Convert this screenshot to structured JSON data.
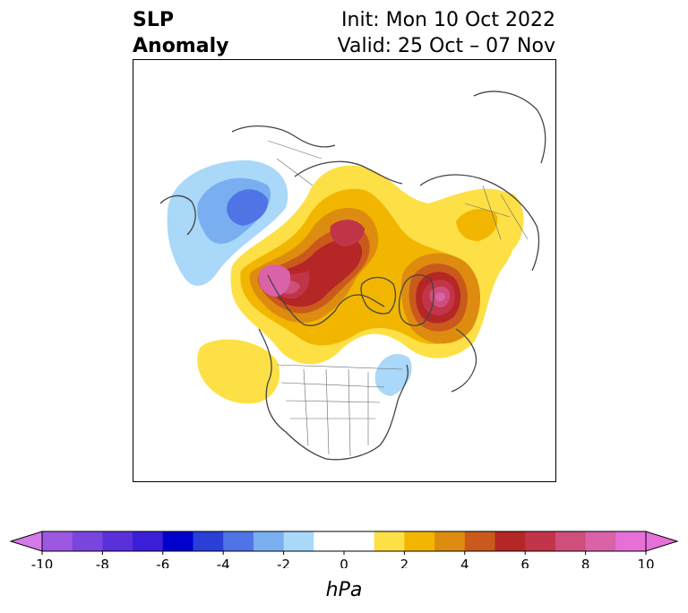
{
  "title": {
    "left_line1": "SLP",
    "left_line2": "Anomaly",
    "right_line1": "Init: Mon 10 Oct 2022",
    "right_line2": "Valid: 25 Oct – 07 Nov"
  },
  "colorbar": {
    "label": "hPa",
    "ticks": [
      "-10",
      "-8",
      "-6",
      "-4",
      "-2",
      "0",
      "2",
      "4",
      "6",
      "8",
      "10"
    ],
    "tick_values": [
      -10,
      -8,
      -6,
      -4,
      -2,
      0,
      2,
      4,
      6,
      8,
      10
    ],
    "extend": "both",
    "left_extend_color": "#d57ae8",
    "right_extend_color": "#e670d8",
    "bins": [
      {
        "from": -10,
        "to": -9,
        "color": "#9c58e0"
      },
      {
        "from": -9,
        "to": -8,
        "color": "#7a45dc"
      },
      {
        "from": -8,
        "to": -7,
        "color": "#5a30da"
      },
      {
        "from": -7,
        "to": -6,
        "color": "#3a1fd6"
      },
      {
        "from": -6,
        "to": -5,
        "color": "#0000cd"
      },
      {
        "from": -5,
        "to": -4,
        "color": "#2a3ed8"
      },
      {
        "from": -4,
        "to": -3,
        "color": "#4f74e6"
      },
      {
        "from": -3,
        "to": -2,
        "color": "#79aef0"
      },
      {
        "from": -2,
        "to": -1,
        "color": "#a9d8f8"
      },
      {
        "from": -1,
        "to": 0,
        "color": "#ffffff"
      },
      {
        "from": 0,
        "to": 1,
        "color": "#ffffff"
      },
      {
        "from": 1,
        "to": 2,
        "color": "#fde046"
      },
      {
        "from": 2,
        "to": 3,
        "color": "#f2b600"
      },
      {
        "from": 3,
        "to": 4,
        "color": "#de8c10"
      },
      {
        "from": 4,
        "to": 5,
        "color": "#c95a1c"
      },
      {
        "from": 5,
        "to": 6,
        "color": "#b52626"
      },
      {
        "from": 6,
        "to": 7,
        "color": "#c23448"
      },
      {
        "from": 7,
        "to": 8,
        "color": "#ce4e7c"
      },
      {
        "from": 8,
        "to": 9,
        "color": "#d962a8"
      },
      {
        "from": 9,
        "to": 10,
        "color": "#e670d8"
      }
    ]
  },
  "map": {
    "projection": "north polar stereographic",
    "features": [
      "coastlines",
      "country borders",
      "US state borders"
    ],
    "anomaly_centers": [
      {
        "area": "Alaska / Gulf of Alaska",
        "sign": "positive",
        "peak_hpa": 8
      },
      {
        "area": "Arctic Ocean / Beaufort Sea",
        "sign": "positive",
        "peak_hpa": 6
      },
      {
        "area": "Greenland Sea / Iceland",
        "sign": "positive",
        "peak_hpa": 9
      },
      {
        "area": "Northern Europe / Scandinavia",
        "sign": "positive",
        "peak_hpa": 2
      },
      {
        "area": "Central Pacific",
        "sign": "positive",
        "peak_hpa": 2
      },
      {
        "area": "Sea of Okhotsk / Kamchatka",
        "sign": "negative",
        "peak_hpa": -5
      },
      {
        "area": "Northwest Atlantic / Newfoundland",
        "sign": "negative",
        "peak_hpa": -2
      }
    ]
  }
}
